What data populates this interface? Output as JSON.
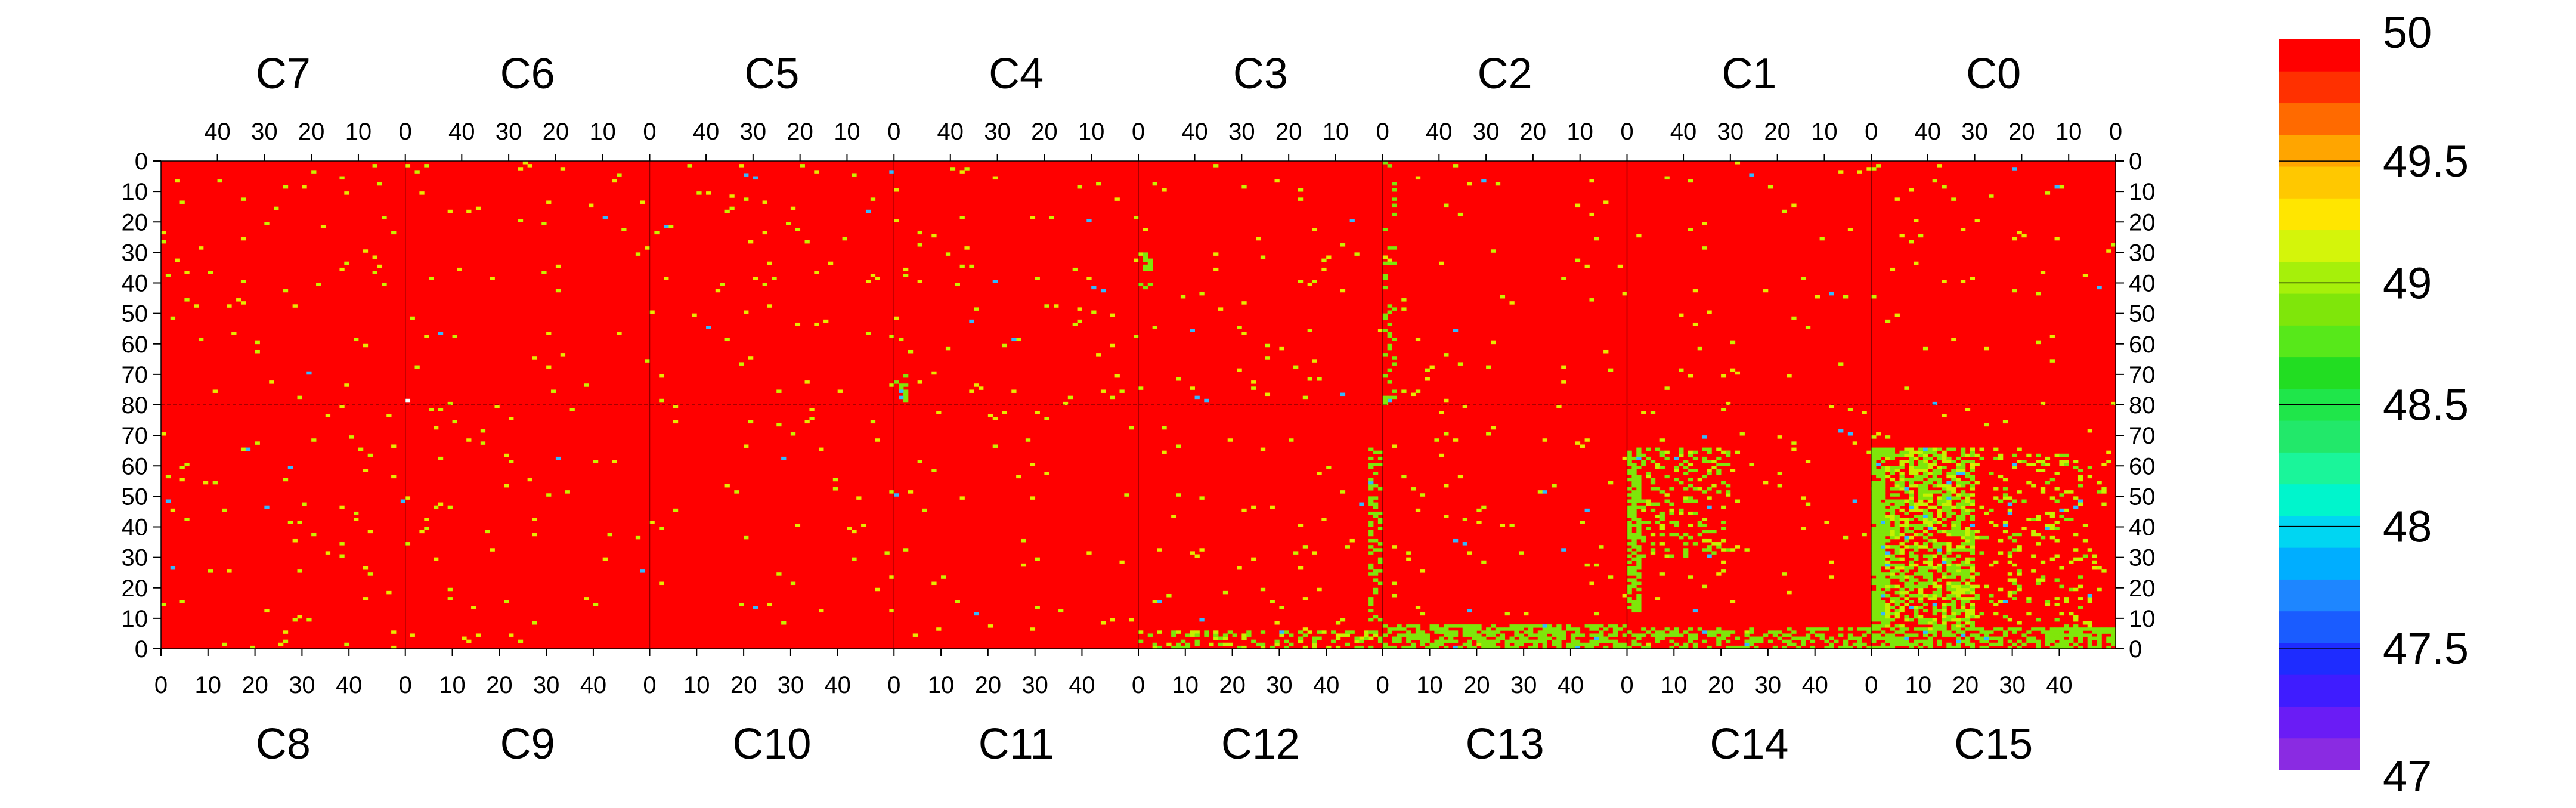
{
  "chart_data": {
    "type": "heatmap",
    "title": "",
    "xlabel": "",
    "ylabel": "",
    "grid": true,
    "top_chips": [
      "C7",
      "C6",
      "C5",
      "C4",
      "C3",
      "C2",
      "C1",
      "C0"
    ],
    "bottom_chips": [
      "C8",
      "C9",
      "C10",
      "C11",
      "C12",
      "C13",
      "C14",
      "C15"
    ],
    "x_ticks_top": [
      "40",
      "30",
      "20",
      "10",
      "0"
    ],
    "x_ticks_bottom": [
      "0",
      "10",
      "20",
      "30",
      "40"
    ],
    "y_ticks_top": [
      "0",
      "10",
      "20",
      "30",
      "40",
      "50",
      "60",
      "70",
      "80"
    ],
    "y_ticks_bottom": [
      "70",
      "60",
      "50",
      "40",
      "30",
      "20",
      "10",
      "0"
    ],
    "columns_per_chip": 52,
    "rows_per_half": 80,
    "background_value": 50,
    "z_range": [
      47,
      50
    ],
    "colorbar": {
      "ticks": [
        "50",
        "49.5",
        "49",
        "48.5",
        "48",
        "47.5",
        "47"
      ],
      "tick_values": [
        50,
        49.5,
        49,
        48.5,
        48,
        47.5,
        47
      ],
      "levels": 20,
      "colors": [
        "#8A2BE2",
        "#6A1CF5",
        "#3F1CFF",
        "#1E2CFF",
        "#1A5CFF",
        "#1E86FF",
        "#00AEFF",
        "#00D6F2",
        "#00F5CC",
        "#1AF59A",
        "#22E86A",
        "#1FE64A",
        "#22DD22",
        "#57E81A",
        "#7FE60A",
        "#A6F00A",
        "#D4F50A",
        "#FFE600",
        "#FFC800",
        "#FFA500",
        "#FF6A00",
        "#FF3000",
        "#FF0000"
      ]
    },
    "point_colors": {
      "yellow": "#E8E800",
      "yellowgreen": "#C8F000",
      "green": "#7FE60A",
      "cyan": "#33B8FF",
      "white": "#FFFFFF"
    },
    "hot_regions": [
      {
        "chip": "C15",
        "half": "bottom",
        "row_range": [
          7,
          66
        ],
        "col_range": [
          0,
          3
        ],
        "value": 49.0,
        "density": 0.9
      },
      {
        "chip": "C15",
        "half": "bottom",
        "row_range": [
          7,
          66
        ],
        "col_range": [
          3,
          22
        ],
        "value": 49.1,
        "density": 0.55
      },
      {
        "chip": "C15",
        "half": "bottom",
        "row_range": [
          7,
          66
        ],
        "col_range": [
          22,
          50
        ],
        "value": 49.2,
        "density": 0.12
      },
      {
        "chip": "C15",
        "half": "bottom",
        "row_range": [
          0,
          7
        ],
        "col_range": [
          0,
          52
        ],
        "value": 49.0,
        "density": 0.55
      },
      {
        "chip": "C14",
        "half": "bottom",
        "row_range": [
          12,
          66
        ],
        "col_range": [
          0,
          3
        ],
        "value": 49.0,
        "density": 0.7
      },
      {
        "chip": "C14",
        "half": "bottom",
        "row_range": [
          30,
          66
        ],
        "col_range": [
          3,
          22
        ],
        "value": 49.1,
        "density": 0.22
      },
      {
        "chip": "C14",
        "half": "bottom",
        "row_range": [
          0,
          7
        ],
        "col_range": [
          0,
          52
        ],
        "value": 49.0,
        "density": 0.35
      },
      {
        "chip": "C13",
        "half": "bottom",
        "row_range": [
          0,
          8
        ],
        "col_range": [
          0,
          52
        ],
        "value": 49.0,
        "density": 0.6
      },
      {
        "chip": "C12",
        "half": "bottom",
        "row_range": [
          0,
          6
        ],
        "col_range": [
          0,
          52
        ],
        "value": 49.1,
        "density": 0.35
      },
      {
        "chip": "C12",
        "half": "bottom",
        "row_range": [
          8,
          66
        ],
        "col_range": [
          49,
          52
        ],
        "value": 49.0,
        "density": 0.35
      },
      {
        "chip": "C2",
        "half": "top",
        "row_range": [
          0,
          80
        ],
        "col_range": [
          49,
          52
        ],
        "value": 49.0,
        "density": 0.18
      },
      {
        "chip": "C3",
        "half": "top",
        "row_range": [
          30,
          45
        ],
        "col_range": [
          49,
          52
        ],
        "value": 49.0,
        "density": 0.3
      },
      {
        "chip": "C4",
        "half": "top",
        "row_range": [
          70,
          80
        ],
        "col_range": [
          49,
          52
        ],
        "value": 49.0,
        "density": 0.5
      }
    ],
    "random_defect_density": 0.012
  }
}
